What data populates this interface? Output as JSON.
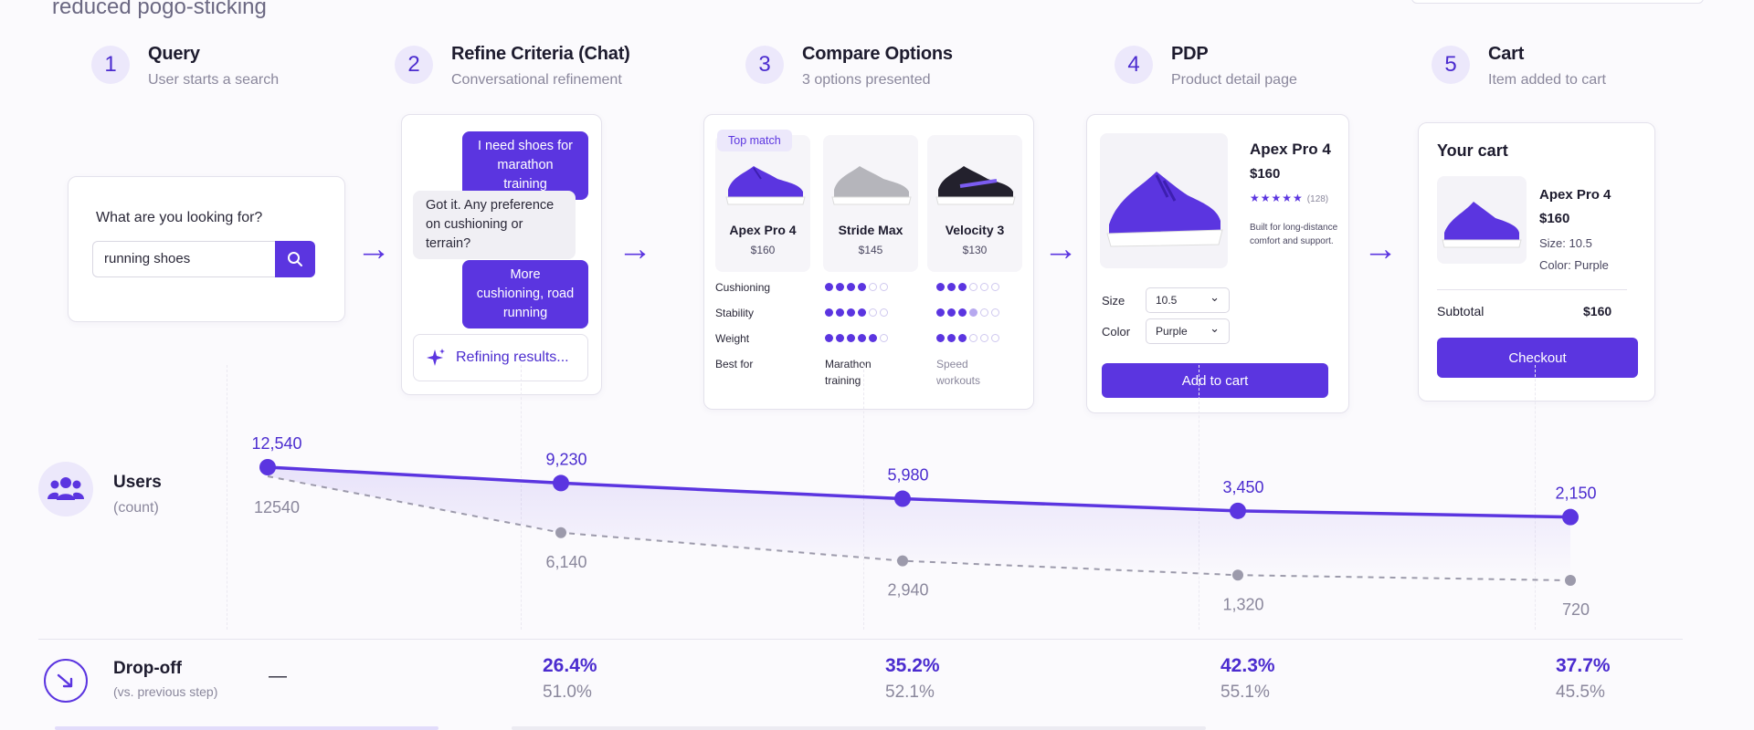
{
  "header": {
    "subtitle": "reduced pogo-sticking"
  },
  "colors": {
    "accent": "#5b35e0",
    "secondary_series": "#9c9aab"
  },
  "steps": [
    {
      "num": "1",
      "title": "Query",
      "sub": "User starts a search"
    },
    {
      "num": "2",
      "title": "Refine Criteria (Chat)",
      "sub": "Conversational refinement"
    },
    {
      "num": "3",
      "title": "Compare Options",
      "sub": "3 options presented"
    },
    {
      "num": "4",
      "title": "PDP",
      "sub": "Product detail page"
    },
    {
      "num": "5",
      "title": "Cart",
      "sub": "Item added to cart"
    }
  ],
  "query_card": {
    "label": "What are you looking for?",
    "value": "running shoes",
    "icon": "search-icon"
  },
  "chat_card": {
    "messages": [
      {
        "from": "user",
        "text": "I need shoes for marathon training"
      },
      {
        "from": "bot",
        "text": "Got it. Any preference on cushioning or terrain?"
      },
      {
        "from": "user",
        "text": "More cushioning, road running"
      }
    ],
    "status": "Refining results..."
  },
  "compare_card": {
    "badge": "Top match",
    "options": [
      {
        "name": "Apex Pro 4",
        "price": "$160",
        "cushioning": 4,
        "stability": 4,
        "weight": 5,
        "best_for": "Marathon training"
      },
      {
        "name": "Stride Max",
        "price": "$145"
      },
      {
        "name": "Velocity 3",
        "price": "$130",
        "cushioning": 3,
        "stability": 3.5,
        "weight": 3,
        "best_for": "Speed workouts"
      }
    ],
    "attributes": [
      "Cushioning",
      "Stability",
      "Weight",
      "Best for"
    ]
  },
  "pdp_card": {
    "title": "Apex Pro 4",
    "price": "$160",
    "stars": "★★★★★",
    "reviews": "(128)",
    "description": "Built for long-distance comfort and support.",
    "size_label": "Size",
    "size_value": "10.5",
    "color_label": "Color",
    "color_value": "Purple",
    "button": "Add to cart"
  },
  "cart_card": {
    "title": "Your cart",
    "item_name": "Apex Pro 4",
    "item_price": "$160",
    "size": "Size:  10.5",
    "color": "Color:  Purple",
    "subtotal_label": "Subtotal",
    "subtotal_value": "$160",
    "button": "Checkout"
  },
  "rows": {
    "users_title": "Users",
    "users_sub": "(count)",
    "drop_title": "Drop-off",
    "drop_sub": "(vs. previous step)",
    "drop_first": "—"
  },
  "chart_data": {
    "type": "line",
    "categories": [
      "Query",
      "Refine Criteria (Chat)",
      "Compare Options",
      "PDP",
      "Cart"
    ],
    "series": [
      {
        "values": [
          12540,
          9230,
          5980,
          3450,
          2150
        ],
        "labels": [
          "12,540",
          "9,230",
          "5,980",
          "3,450",
          "2,150"
        ]
      },
      {
        "values": [
          12540,
          6140,
          2940,
          1320,
          720
        ],
        "labels": [
          "12540",
          "6,140",
          "2,940",
          "1,320",
          "720"
        ]
      }
    ],
    "ylim": [
      0,
      13000
    ],
    "dropoff": {
      "series_a": [
        "26.4%",
        "35.2%",
        "42.3%",
        "37.7%"
      ],
      "series_b": [
        "51.0%",
        "52.1%",
        "55.1%",
        "45.5%"
      ]
    }
  }
}
